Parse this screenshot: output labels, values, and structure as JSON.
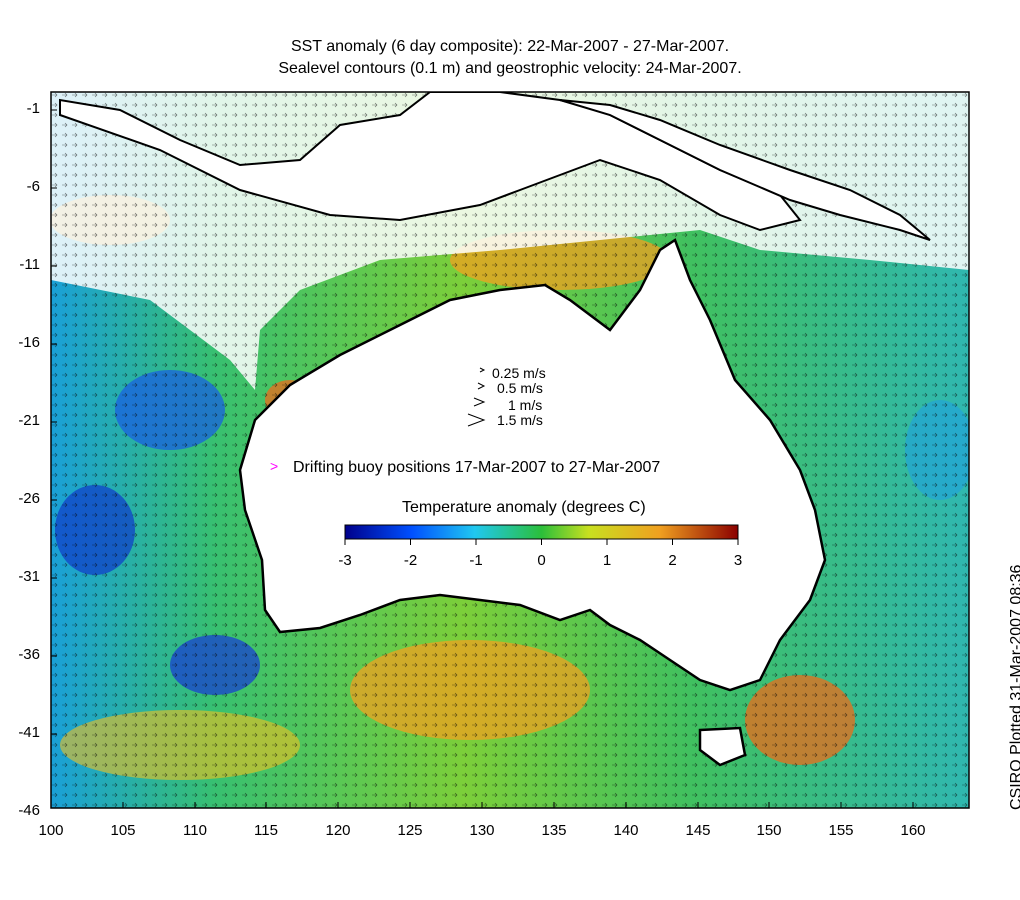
{
  "title": {
    "line1": "SST anomaly (6 day composite): 22-Mar-2007 - 27-Mar-2007.",
    "line2": "Sealevel contours (0.1 m) and geostrophic velocity: 24-Mar-2007."
  },
  "map": {
    "y_ticks": [
      "-1",
      "-6",
      "-11",
      "-16",
      "-21",
      "-26",
      "-31",
      "-36",
      "-41",
      "-46"
    ],
    "x_ticks": [
      "100",
      "105",
      "110",
      "115",
      "120",
      "125",
      "130",
      "135",
      "140",
      "145",
      "150",
      "155",
      "160"
    ],
    "lon_range": [
      100,
      164
    ],
    "lat_range": [
      -46,
      0
    ],
    "colors": {
      "land": "#ffffff",
      "coast": "#000000",
      "buoy": "#ff00ff",
      "anomaly_cold": "#00008b",
      "anomaly_neutral": "#2bbf3a",
      "anomaly_warm": "#8b0000"
    }
  },
  "legend": {
    "velocity_scale": [
      "0.25 m/s",
      "0.5 m/s",
      "1 m/s",
      "1.5 m/s"
    ],
    "buoy_text": "Drifting buoy positions 17-Mar-2007 to 27-Mar-2007",
    "buoy_marker": ">",
    "colorbar_title": "Temperature anomaly (degrees C)",
    "colorbar_ticks": [
      "-3",
      "-2",
      "-1",
      "0",
      "1",
      "2",
      "3"
    ],
    "colorbar_range": [
      -3,
      3
    ],
    "colorbar_colors": [
      "#00008b",
      "#0050ff",
      "#20c8f0",
      "#2bbf3a",
      "#c8e020",
      "#f0a020",
      "#8b0000"
    ]
  },
  "credit": "CSIRO Plotted 31-Mar-2007 08:36"
}
